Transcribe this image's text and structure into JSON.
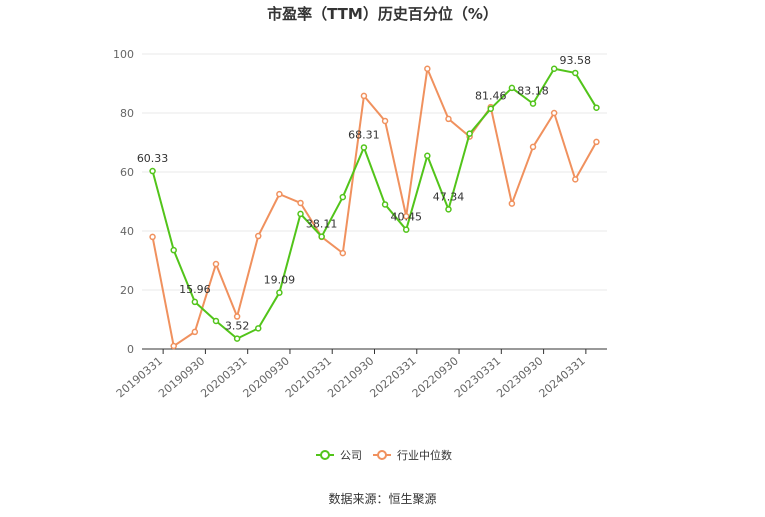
{
  "chart_data": {
    "type": "line",
    "title": "市盈率（TTM）历史百分位（%）",
    "xlabel": "",
    "ylabel": "",
    "ylim": [
      0,
      100
    ],
    "yticks": [
      0,
      20,
      40,
      60,
      80,
      100
    ],
    "grid": true,
    "legend_position": "bottom",
    "x": [
      "20190331",
      "20190630",
      "20190930",
      "20191231",
      "20200331",
      "20200630",
      "20200930",
      "20201231",
      "20210331",
      "20210630",
      "20210930",
      "20211231",
      "20220331",
      "20220630",
      "20220930",
      "20221231",
      "20230331",
      "20230630",
      "20230930",
      "20231231",
      "20240331",
      "20240630"
    ],
    "xticklabels": [
      "20190331",
      "20190930",
      "20200331",
      "20200930",
      "20210331",
      "20210930",
      "20220331",
      "20220930",
      "20230331",
      "20230930",
      "20240331"
    ],
    "series": [
      {
        "name": "公司",
        "color": "#52c41a",
        "values": [
          60.33,
          33.5,
          15.96,
          9.5,
          3.52,
          7.0,
          19.09,
          45.8,
          38.11,
          51.5,
          68.31,
          49.0,
          40.45,
          65.5,
          47.34,
          73.0,
          81.46,
          88.5,
          83.18,
          95.0,
          93.58,
          81.8
        ],
        "labels": {
          "0": "60.33",
          "2": "15.96",
          "4": "3.52",
          "6": "19.09",
          "8": "38.11",
          "10": "68.31",
          "12": "40.45",
          "14": "47.34",
          "16": "81.46",
          "18": "83.18",
          "20": "93.58"
        }
      },
      {
        "name": "行业中位数",
        "color": "#f0915e",
        "values": [
          38.0,
          1.0,
          5.8,
          28.8,
          11.0,
          38.3,
          52.5,
          49.5,
          38.0,
          32.5,
          85.8,
          77.3,
          45.0,
          95.0,
          78.0,
          72.0,
          82.0,
          49.3,
          68.5,
          80.0,
          57.5,
          70.2
        ]
      }
    ]
  },
  "source_text": "数据来源：恒生聚源"
}
